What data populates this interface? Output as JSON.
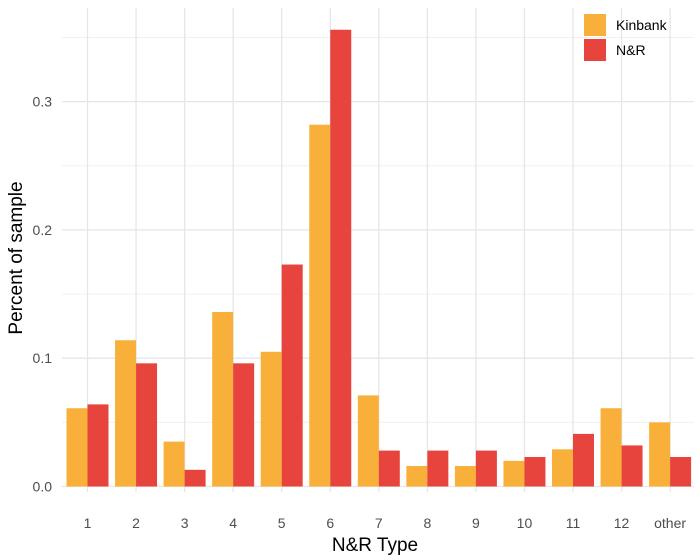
{
  "chart_data": {
    "type": "bar",
    "xlabel": "N&R Type",
    "ylabel": "Percent of sample",
    "ylim": [
      0,
      0.37
    ],
    "yticks": [
      0.0,
      0.1,
      0.2,
      0.3
    ],
    "ytick_labels": [
      "0.0",
      "0.1",
      "0.2",
      "0.3"
    ],
    "categories": [
      "1",
      "2",
      "3",
      "4",
      "5",
      "6",
      "7",
      "8",
      "9",
      "10",
      "11",
      "12",
      "other"
    ],
    "series": [
      {
        "name": "Kinbank",
        "color": "#F9B03A",
        "values": [
          0.061,
          0.114,
          0.035,
          0.136,
          0.105,
          0.282,
          0.071,
          0.016,
          0.016,
          0.02,
          0.029,
          0.061,
          0.05
        ]
      },
      {
        "name": "N&R",
        "color": "#E8443E",
        "values": [
          0.064,
          0.096,
          0.013,
          0.096,
          0.173,
          0.356,
          0.028,
          0.028,
          0.028,
          0.023,
          0.041,
          0.032,
          0.023
        ]
      }
    ],
    "grid": true,
    "legend_position": "top-right"
  }
}
